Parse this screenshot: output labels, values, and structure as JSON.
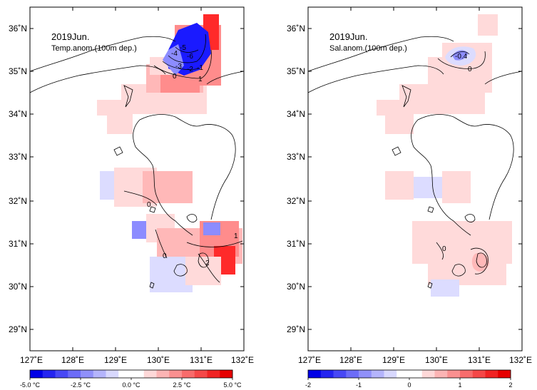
{
  "colors": {
    "neg_strong": "#1a1aff",
    "neg_mid": "#8c8cff",
    "neg_weak": "#dcdcff",
    "pos_weak": "#ffdada",
    "pos_light": "#ffb8b8",
    "pos_mid": "#ff8c8c",
    "pos_strong": "#ff2a2a"
  },
  "lat_ticks": [
    "36˚N",
    "35˚N",
    "34˚N",
    "33˚N",
    "32˚N",
    "31˚N",
    "30˚N",
    "29˚N"
  ],
  "lon_ticks": [
    "127˚E",
    "128˚E",
    "129˚E",
    "130˚E",
    "131˚E",
    "132˚E"
  ],
  "panels": [
    {
      "title": "2019Jun.",
      "subtitle": "Temp.anom.(100m dep.)",
      "contour_labels": [
        "-4",
        "-5",
        "-6",
        "-3",
        "-2",
        "-1",
        "0",
        "1",
        "0",
        "0",
        "1",
        "2"
      ],
      "colorbar_labels": [
        "-5.0 °C",
        "-2.5 °C",
        "0.0 °C",
        "2.5 °C",
        "5.0 °C"
      ]
    },
    {
      "title": "2019Jun.",
      "subtitle": "Sal.anom.(100m dep.)",
      "contour_labels": [
        "-0.4",
        "0",
        "0"
      ],
      "colorbar_labels": [
        "-2",
        "-1",
        "0",
        "1",
        "2"
      ]
    }
  ]
}
